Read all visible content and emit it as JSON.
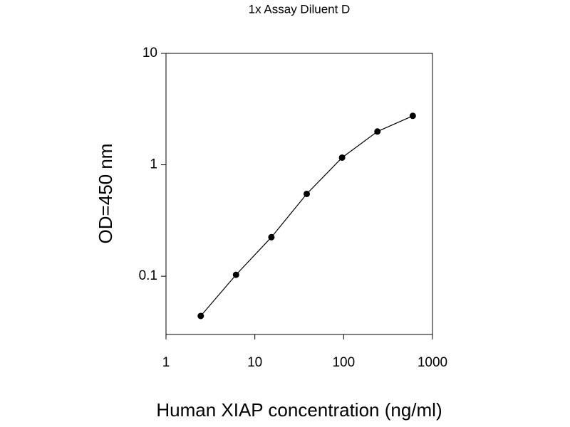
{
  "chart_data": {
    "type": "line",
    "title": "1x Assay Diluent D",
    "x_label": "Human XIAP concentration (ng/ml)",
    "y_label": "OD=450 nm",
    "x": [
      2.46,
      6.14,
      15.36,
      38.4,
      96,
      240,
      600
    ],
    "series": [
      {
        "name": "XIAP",
        "color": "#000000",
        "values": [
          0.044,
          0.103,
          0.224,
          0.548,
          1.16,
          1.99,
          2.75
        ]
      }
    ],
    "x_scale": "log",
    "y_scale": "log",
    "xlim": [
      1,
      1000
    ],
    "ylim": [
      0.03,
      10
    ],
    "xticks": [
      1,
      10,
      100,
      1000
    ],
    "yticks": [
      0.1,
      1,
      10
    ]
  }
}
